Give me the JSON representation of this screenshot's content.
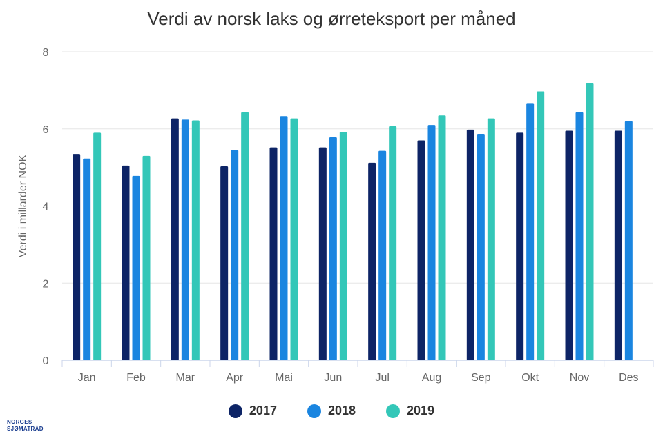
{
  "chart_data": {
    "type": "bar",
    "title": "Verdi av norsk laks og ørreteksport per måned",
    "xlabel": "",
    "ylabel": "Verdi i millarder NOK",
    "ylim": [
      0,
      8
    ],
    "yticks": [
      "0",
      "2",
      "4",
      "6",
      "8"
    ],
    "grid": true,
    "legend_position": "bottom",
    "categories": [
      "Jan",
      "Feb",
      "Mar",
      "Apr",
      "Mai",
      "Jun",
      "Jul",
      "Aug",
      "Sep",
      "Okt",
      "Nov",
      "Des"
    ],
    "series": [
      {
        "name": "2017",
        "color": "#0d2466",
        "values": [
          5.35,
          5.05,
          6.27,
          5.03,
          5.52,
          5.52,
          5.12,
          5.7,
          5.98,
          5.9,
          5.95,
          5.95
        ]
      },
      {
        "name": "2018",
        "color": "#1a85e0",
        "values": [
          5.23,
          4.78,
          6.24,
          5.45,
          6.33,
          5.78,
          5.43,
          6.1,
          5.87,
          6.67,
          6.43,
          6.2
        ]
      },
      {
        "name": "2019",
        "color": "#33c7b8",
        "values": [
          5.9,
          5.3,
          6.22,
          6.43,
          6.27,
          5.92,
          6.07,
          6.35,
          6.27,
          6.97,
          7.18,
          null
        ]
      }
    ]
  },
  "logo": {
    "line1": "NORGES",
    "line2": "SJØMATRÅD"
  }
}
